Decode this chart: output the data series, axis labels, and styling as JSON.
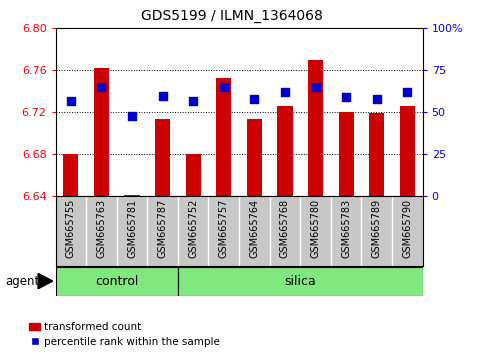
{
  "title": "GDS5199 / ILMN_1364068",
  "samples": [
    "GSM665755",
    "GSM665763",
    "GSM665781",
    "GSM665787",
    "GSM665752",
    "GSM665757",
    "GSM665764",
    "GSM665768",
    "GSM665780",
    "GSM665783",
    "GSM665789",
    "GSM665790"
  ],
  "groups": [
    "control",
    "control",
    "control",
    "control",
    "silica",
    "silica",
    "silica",
    "silica",
    "silica",
    "silica",
    "silica",
    "silica"
  ],
  "transformed_count": [
    6.68,
    6.762,
    6.641,
    6.714,
    6.68,
    6.753,
    6.714,
    6.726,
    6.77,
    6.72,
    6.719,
    6.726
  ],
  "percentile_rank": [
    57,
    65,
    48,
    60,
    57,
    65,
    58,
    62,
    65,
    59,
    58,
    62
  ],
  "ylim_left": [
    6.64,
    6.8
  ],
  "ylim_right": [
    0,
    100
  ],
  "yticks_left": [
    6.64,
    6.68,
    6.72,
    6.76,
    6.8
  ],
  "yticks_right": [
    0,
    25,
    50,
    75,
    100
  ],
  "bar_color": "#cc0000",
  "dot_color": "#0000cc",
  "bar_width": 0.5,
  "dot_size": 40,
  "group_color": "#7fe87f",
  "tick_bg_color": "#c8c8c8",
  "legend_bar_label": "transformed count",
  "legend_dot_label": "percentile rank within the sample",
  "control_count": 4,
  "n_samples": 12
}
